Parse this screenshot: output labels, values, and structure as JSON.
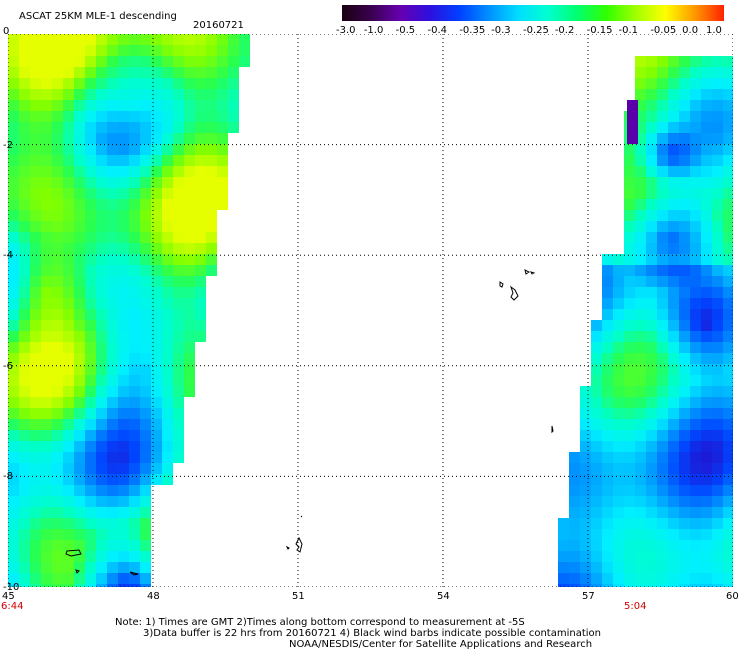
{
  "header": {
    "title": "ASCAT 25KM MLE-1 descending",
    "date": "20160721"
  },
  "colorbar": {
    "labels": [
      "-3.0",
      "-1.0",
      "-0.5",
      "-0.4",
      "-0.35",
      "-0.3",
      "-0.25",
      "-0.2",
      "-0.15",
      "-0.1",
      "-0.05",
      "0.0",
      "1.0"
    ],
    "colors": [
      "#1a0010",
      "#3a0050",
      "#6600b0",
      "#2d10e0",
      "#0040ff",
      "#0090ff",
      "#00ddff",
      "#00ffd0",
      "#00ff70",
      "#30ff00",
      "#a0ff00",
      "#ffff00",
      "#ff9900",
      "#ff2200"
    ]
  },
  "axes": {
    "x_ticks": [
      "45",
      "48",
      "51",
      "54",
      "57",
      "60"
    ],
    "y_ticks": [
      "0",
      "-2",
      "-4",
      "-6",
      "-8",
      "-10"
    ],
    "x_range": [
      45,
      60
    ],
    "y_range": [
      -10,
      0
    ],
    "time_left": "6:44",
    "time_right": "5:04"
  },
  "notes": {
    "line1": "Note: 1) Times are GMT 2)Times along bottom correspond to measurement at -5S",
    "line2": "3)Data buffer is 22 hrs from 20160721 4) Black wind barbs indicate possible contamination",
    "line3": "NOAA/NESDIS/Center for Satellite Applications and Research"
  }
}
